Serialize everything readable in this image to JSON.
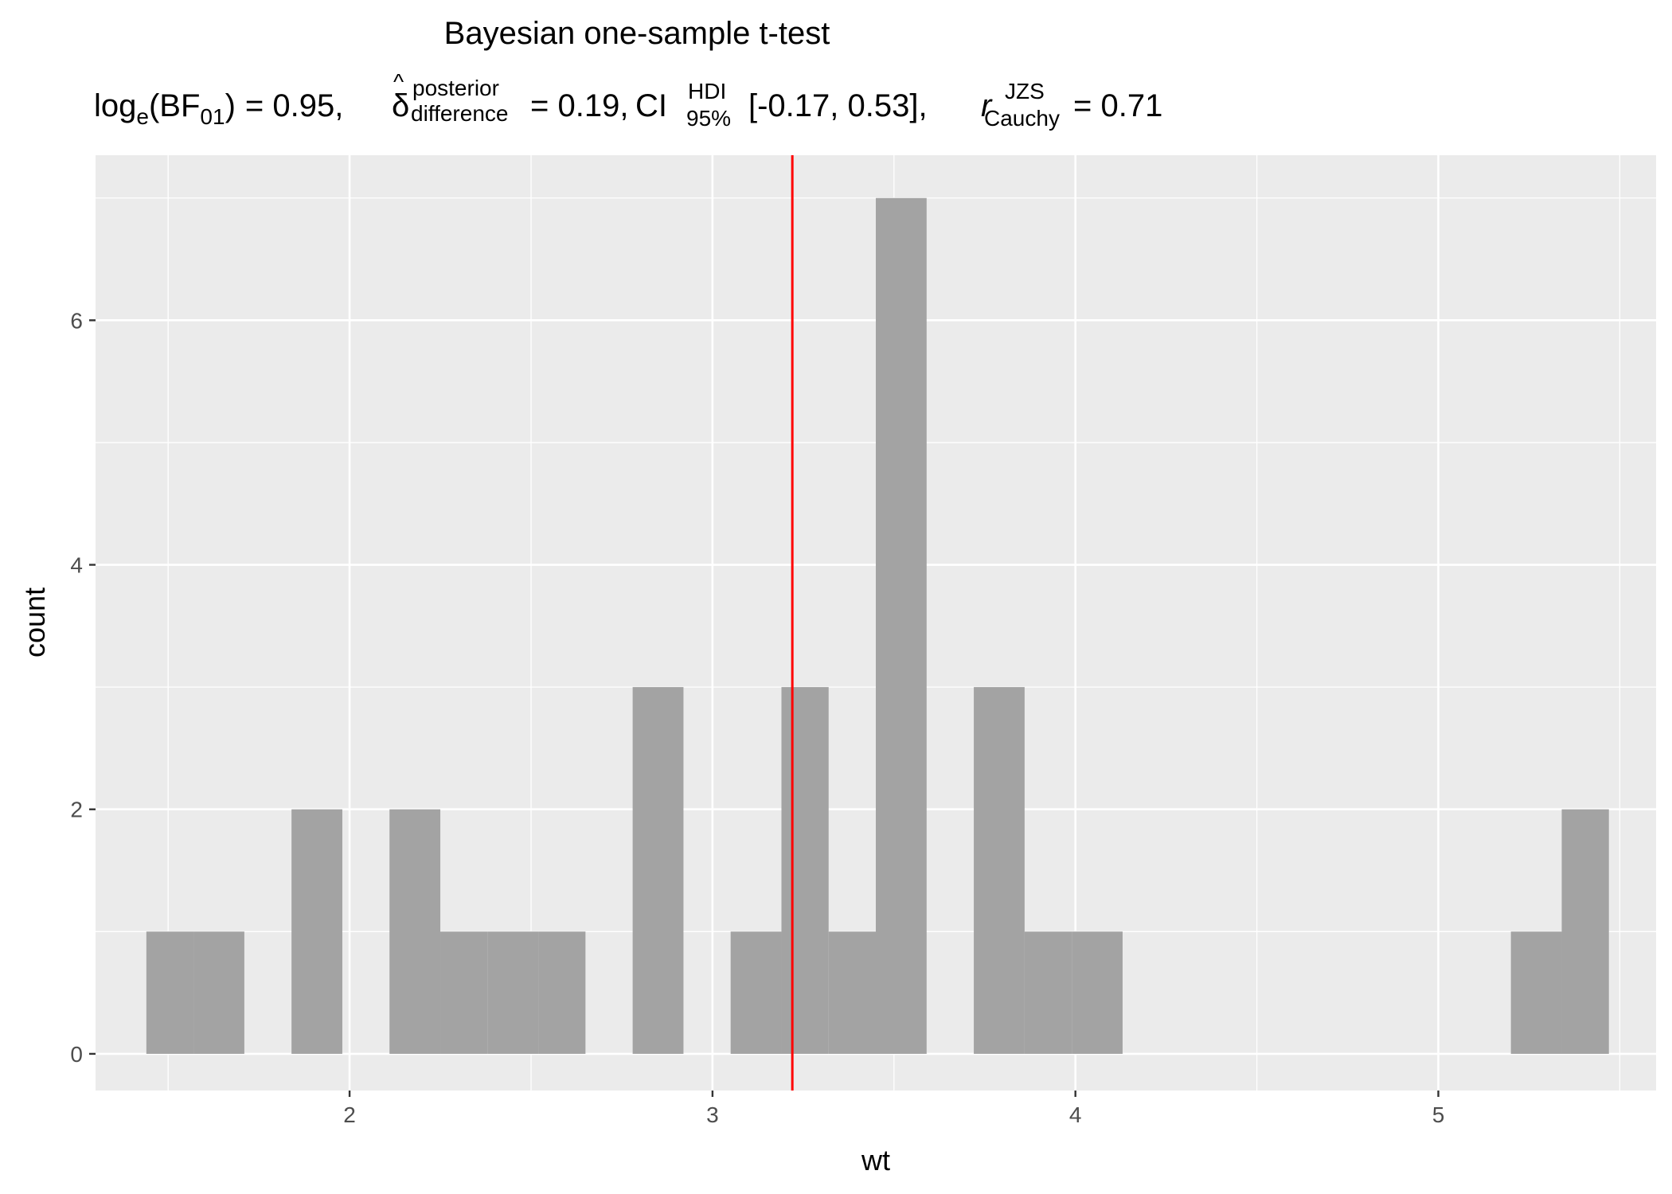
{
  "chart_data": {
    "type": "bar",
    "title": "Bayesian one-sample t-test",
    "subtitle": {
      "bf_log": "log",
      "bf_log_sub": "e",
      "bf_open": "(BF",
      "bf_sub": "01",
      "bf_close": ")",
      "bf_value": "= 0.95,",
      "delta_symbol": "δ",
      "delta_hat": "^",
      "delta_sup": "posterior",
      "delta_sub": "difference",
      "delta_value": "= 0.19,",
      "ci_label": "CI",
      "ci_sup": "HDI",
      "ci_sub": "95%",
      "ci_value": "[-0.17, 0.53],",
      "r_label": "r",
      "r_sup": "JZS",
      "r_sub": "Cauchy",
      "r_value": "= 0.71"
    },
    "xlabel": "wt",
    "ylabel": "count",
    "xlim": [
      1.3,
      5.6
    ],
    "ylim": [
      -0.3,
      7.35
    ],
    "x_ticks": [
      2,
      3,
      4,
      5
    ],
    "y_ticks": [
      0,
      2,
      4,
      6
    ],
    "bin_width": 0.1345,
    "bins": [
      {
        "x0": 1.44,
        "x1": 1.57,
        "count": 1
      },
      {
        "x0": 1.57,
        "x1": 1.71,
        "count": 1
      },
      {
        "x0": 1.84,
        "x1": 1.98,
        "count": 2
      },
      {
        "x0": 2.11,
        "x1": 2.25,
        "count": 2
      },
      {
        "x0": 2.25,
        "x1": 2.38,
        "count": 1
      },
      {
        "x0": 2.38,
        "x1": 2.52,
        "count": 1
      },
      {
        "x0": 2.52,
        "x1": 2.65,
        "count": 1
      },
      {
        "x0": 2.78,
        "x1": 2.92,
        "count": 3
      },
      {
        "x0": 3.05,
        "x1": 3.19,
        "count": 1
      },
      {
        "x0": 3.19,
        "x1": 3.32,
        "count": 3
      },
      {
        "x0": 3.32,
        "x1": 3.45,
        "count": 1
      },
      {
        "x0": 3.45,
        "x1": 3.59,
        "count": 7
      },
      {
        "x0": 3.72,
        "x1": 3.86,
        "count": 3
      },
      {
        "x0": 3.86,
        "x1": 3.99,
        "count": 1
      },
      {
        "x0": 3.99,
        "x1": 4.13,
        "count": 1
      },
      {
        "x0": 5.2,
        "x1": 5.34,
        "count": 1
      },
      {
        "x0": 5.34,
        "x1": 5.47,
        "count": 2
      }
    ],
    "mean_line": 3.22,
    "grid": true,
    "colors": {
      "panel": "#ebebeb",
      "grid_major": "#ffffff",
      "bar": "#a3a3a3",
      "mean_line": "#ff0000"
    }
  }
}
